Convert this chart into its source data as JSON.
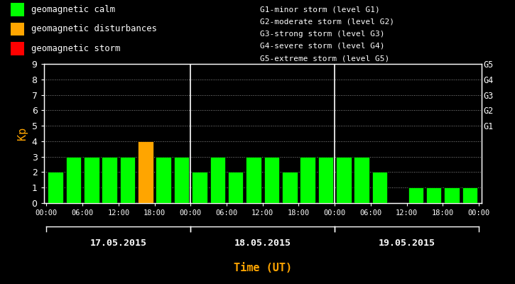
{
  "background_color": "#000000",
  "plot_bg_color": "#000000",
  "text_color": "#ffffff",
  "bar_values": [
    2,
    3,
    3,
    3,
    3,
    4,
    3,
    3,
    2,
    3,
    2,
    3,
    3,
    2,
    3,
    3,
    3,
    3,
    2,
    0,
    1,
    1,
    1,
    1
  ],
  "bar_colors": [
    "#00ff00",
    "#00ff00",
    "#00ff00",
    "#00ff00",
    "#00ff00",
    "#ffa500",
    "#00ff00",
    "#00ff00",
    "#00ff00",
    "#00ff00",
    "#00ff00",
    "#00ff00",
    "#00ff00",
    "#00ff00",
    "#00ff00",
    "#00ff00",
    "#00ff00",
    "#00ff00",
    "#00ff00",
    "#00ff00",
    "#00ff00",
    "#00ff00",
    "#00ff00",
    "#00ff00"
  ],
  "ylim": [
    0,
    9
  ],
  "yticks": [
    0,
    1,
    2,
    3,
    4,
    5,
    6,
    7,
    8,
    9
  ],
  "ylabel": "Kp",
  "ylabel_color": "#ffa500",
  "xlabel": "Time (UT)",
  "xlabel_color": "#ffa500",
  "day_labels": [
    "17.05.2015",
    "18.05.2015",
    "19.05.2015"
  ],
  "xtick_labels": [
    "00:00",
    "06:00",
    "12:00",
    "18:00",
    "00:00",
    "06:00",
    "12:00",
    "18:00",
    "00:00",
    "06:00",
    "12:00",
    "18:00",
    "00:00"
  ],
  "right_axis_labels": [
    "G1",
    "G2",
    "G3",
    "G4",
    "G5"
  ],
  "right_axis_positions": [
    5,
    6,
    7,
    8,
    9
  ],
  "legend_items": [
    {
      "color": "#00ff00",
      "label": "geomagnetic calm"
    },
    {
      "color": "#ffa500",
      "label": "geomagnetic disturbances"
    },
    {
      "color": "#ff0000",
      "label": "geomagnetic storm"
    }
  ],
  "right_legend_lines": [
    "G1-minor storm (level G1)",
    "G2-moderate storm (level G2)",
    "G3-strong storm (level G3)",
    "G4-severe storm (level G4)",
    "G5-extreme storm (level G5)"
  ],
  "dot_color": "#888888",
  "separator_color": "#ffffff",
  "bar_width": 0.85,
  "font_name": "monospace"
}
